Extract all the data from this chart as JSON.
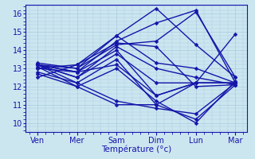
{
  "title": "",
  "xlabel": "Température (°c)",
  "ylabel": "",
  "xlim": [
    -0.3,
    5.3
  ],
  "ylim": [
    9.5,
    16.5
  ],
  "yticks": [
    10,
    11,
    12,
    13,
    14,
    15,
    16
  ],
  "xtick_labels": [
    "Ven",
    "Mer",
    "Sam",
    "Dim",
    "Lun",
    "Mar"
  ],
  "background_color": "#cce6f0",
  "grid_color": "#a8cce0",
  "line_color": "#1515aa",
  "marker": "D",
  "marker_size": 2.5,
  "line_width": 1.0,
  "series": [
    [
      12.5,
      13.2,
      14.4,
      14.2,
      12.0,
      12.1
    ],
    [
      12.8,
      12.2,
      13.5,
      11.0,
      12.2,
      12.2
    ],
    [
      13.2,
      12.5,
      14.2,
      13.0,
      12.5,
      12.1
    ],
    [
      13.3,
      13.0,
      14.8,
      16.3,
      14.3,
      12.5
    ],
    [
      13.1,
      12.0,
      13.0,
      11.2,
      10.0,
      12.3
    ],
    [
      13.2,
      12.8,
      13.2,
      11.5,
      12.2,
      12.2
    ],
    [
      13.2,
      12.5,
      13.8,
      12.2,
      12.2,
      14.9
    ],
    [
      13.0,
      13.2,
      14.8,
      13.3,
      13.0,
      12.2
    ],
    [
      13.2,
      12.2,
      11.2,
      10.8,
      10.5,
      12.2
    ],
    [
      13.0,
      12.8,
      14.5,
      15.5,
      16.2,
      12.2
    ],
    [
      13.2,
      13.0,
      14.3,
      14.5,
      16.1,
      12.5
    ],
    [
      13.2,
      12.8,
      14.0,
      11.5,
      12.2,
      12.2
    ],
    [
      12.7,
      12.0,
      11.0,
      11.0,
      10.2,
      12.1
    ]
  ],
  "xlabel_fontsize": 7.5,
  "ytick_fontsize": 7,
  "xtick_fontsize": 7
}
